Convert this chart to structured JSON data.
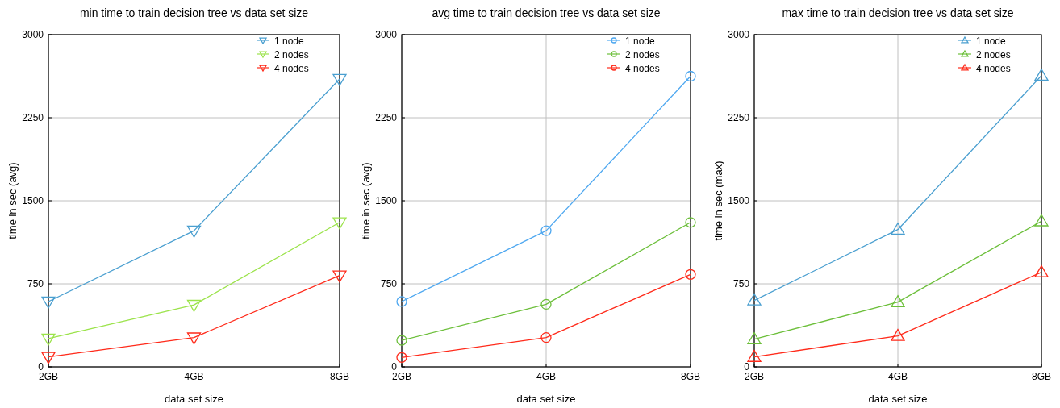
{
  "chart_data": [
    {
      "type": "line",
      "title": "min time to train decision tree vs data set size",
      "xlabel": "data set size",
      "ylabel": "time in sec (avg)",
      "categories": [
        "2GB",
        "4GB",
        "8GB"
      ],
      "ylim": [
        0,
        3000
      ],
      "yticks": [
        0,
        750,
        1500,
        2250,
        3000
      ],
      "grid": true,
      "legend": "top right",
      "marker": "triangle-down",
      "series": [
        {
          "name": "1 node",
          "color": "#4a9fd0",
          "values": [
            590,
            1230,
            2600
          ]
        },
        {
          "name": "2 nodes",
          "color": "#9be34a",
          "values": [
            255,
            560,
            1305
          ]
        },
        {
          "name": "4 nodes",
          "color": "#ff2a1a",
          "values": [
            90,
            265,
            825
          ]
        }
      ]
    },
    {
      "type": "line",
      "title": "avg time to train decision tree vs data set size",
      "xlabel": "data set size",
      "ylabel": "time in sec (avg)",
      "categories": [
        "2GB",
        "4GB",
        "8GB"
      ],
      "ylim": [
        0,
        3000
      ],
      "yticks": [
        0,
        750,
        1500,
        2250,
        3000
      ],
      "grid": true,
      "legend": "top right",
      "marker": "circle",
      "series": [
        {
          "name": "1 node",
          "color": "#4fa8f0",
          "values": [
            590,
            1230,
            2625
          ]
        },
        {
          "name": "2 nodes",
          "color": "#6cbf3a",
          "values": [
            240,
            565,
            1305
          ]
        },
        {
          "name": "4 nodes",
          "color": "#ff2a1a",
          "values": [
            85,
            265,
            835
          ]
        }
      ]
    },
    {
      "type": "line",
      "title": "max time to train decision tree vs data set size",
      "xlabel": "data set size",
      "ylabel": "time in sec (max)",
      "categories": [
        "2GB",
        "4GB",
        "8GB"
      ],
      "ylim": [
        0,
        3000
      ],
      "yticks": [
        0,
        750,
        1500,
        2250,
        3000
      ],
      "grid": true,
      "legend": "top right",
      "marker": "triangle",
      "series": [
        {
          "name": "1 node",
          "color": "#4a9fd0",
          "values": [
            600,
            1240,
            2630
          ]
        },
        {
          "name": "2 nodes",
          "color": "#6cbf3a",
          "values": [
            250,
            585,
            1315
          ]
        },
        {
          "name": "4 nodes",
          "color": "#ff2a1a",
          "values": [
            90,
            280,
            855
          ]
        }
      ]
    }
  ]
}
